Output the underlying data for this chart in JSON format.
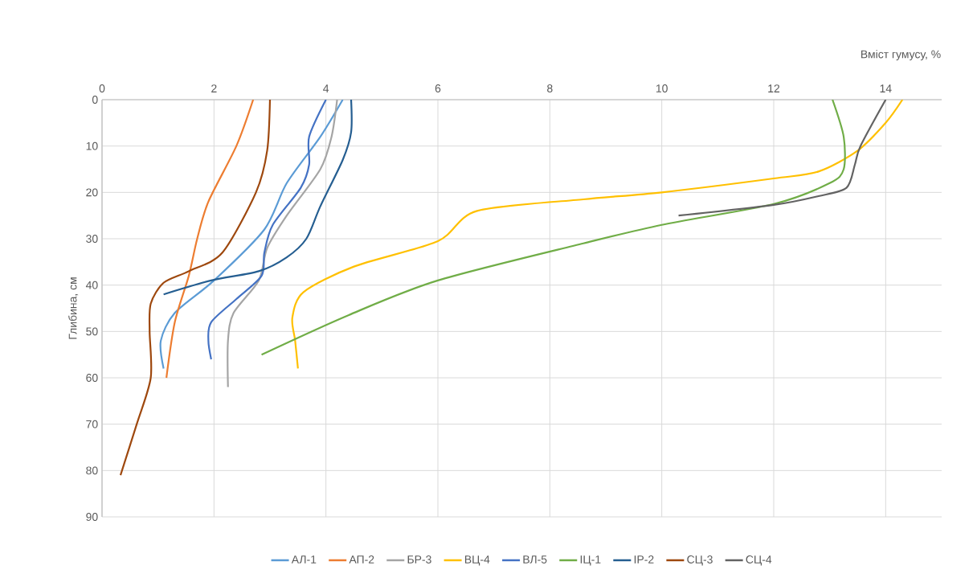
{
  "chart_data": {
    "type": "line",
    "xlabel": "Вміст гумусу, %",
    "ylabel": "Глибина, см",
    "xlim": [
      0,
      15
    ],
    "xticks": [
      0,
      2,
      4,
      6,
      8,
      10,
      12,
      14
    ],
    "ylim": [
      90,
      0
    ],
    "yticks": [
      0,
      10,
      20,
      30,
      40,
      50,
      60,
      70,
      80,
      90
    ],
    "grid": true,
    "legend": "bottom",
    "marker": "none",
    "line_style": "solid",
    "series": [
      {
        "name": "АЛ-1",
        "color": "#5b9bd5",
        "x": [
          4.3,
          3.9,
          3.3,
          2.9,
          2.0,
          1.3,
          1.05,
          1.1
        ],
        "values": [
          0,
          8,
          18,
          28,
          39,
          46,
          52,
          58
        ]
      },
      {
        "name": "АП-2",
        "color": "#ed7d31",
        "x": [
          2.7,
          2.4,
          1.9,
          1.7,
          1.55,
          1.3,
          1.15
        ],
        "values": [
          0,
          10,
          22,
          30,
          38,
          48,
          60
        ]
      },
      {
        "name": "БР-3",
        "color": "#a5a5a5",
        "x": [
          4.2,
          4.1,
          3.9,
          3.3,
          2.95,
          2.8,
          2.35,
          2.25,
          2.25
        ],
        "values": [
          0,
          8,
          15,
          25,
          32,
          39,
          46,
          52,
          62
        ]
      },
      {
        "name": "ВЦ-4",
        "color": "#ffc000",
        "x": [
          14.3,
          14.0,
          13.5,
          12.8,
          12.0,
          10.0,
          8.6,
          6.7,
          6.0,
          4.5,
          3.6,
          3.4,
          3.45,
          3.5
        ],
        "values": [
          0,
          5,
          11,
          15.5,
          17,
          20,
          21.5,
          24,
          30.5,
          36,
          41.5,
          47,
          52,
          58
        ]
      },
      {
        "name": "ВЛ-5",
        "color": "#4472c4",
        "x": [
          4.0,
          3.7,
          3.7,
          3.55,
          3.05,
          2.9,
          2.85,
          2.4,
          1.95,
          1.9,
          1.95
        ],
        "values": [
          0,
          8,
          14,
          19,
          27,
          33,
          38,
          43,
          48,
          52,
          56
        ]
      },
      {
        "name": "ІЦ-1",
        "color": "#70ad47",
        "x": [
          13.05,
          13.25,
          13.25,
          13.0,
          12.0,
          10.0,
          8.6,
          6.0,
          4.4,
          2.85
        ],
        "values": [
          0,
          8,
          15,
          18,
          22.5,
          27,
          31,
          39,
          46.5,
          55
        ]
      },
      {
        "name": "ІР-2",
        "color": "#255e91",
        "x": [
          4.45,
          4.45,
          4.3,
          3.9,
          3.65,
          3.3,
          2.8,
          1.95,
          1.1
        ],
        "values": [
          0,
          7,
          13,
          23,
          30,
          34,
          37,
          39,
          42
        ]
      },
      {
        "name": "СЦ-3",
        "color": "#9e480e",
        "x": [
          3.0,
          2.95,
          2.75,
          2.15,
          1.55,
          1.1,
          0.87,
          0.85,
          0.87,
          0.62,
          0.33
        ],
        "values": [
          0,
          11,
          20,
          33,
          37,
          39.5,
          44,
          50,
          60,
          70,
          81
        ]
      },
      {
        "name": "СЦ-4",
        "color": "#636363",
        "x": [
          14.0,
          13.55,
          13.45,
          13.3,
          12.8,
          12.0,
          10.3
        ],
        "values": [
          0,
          10,
          14,
          19,
          20.8,
          22.7,
          25
        ]
      }
    ]
  }
}
